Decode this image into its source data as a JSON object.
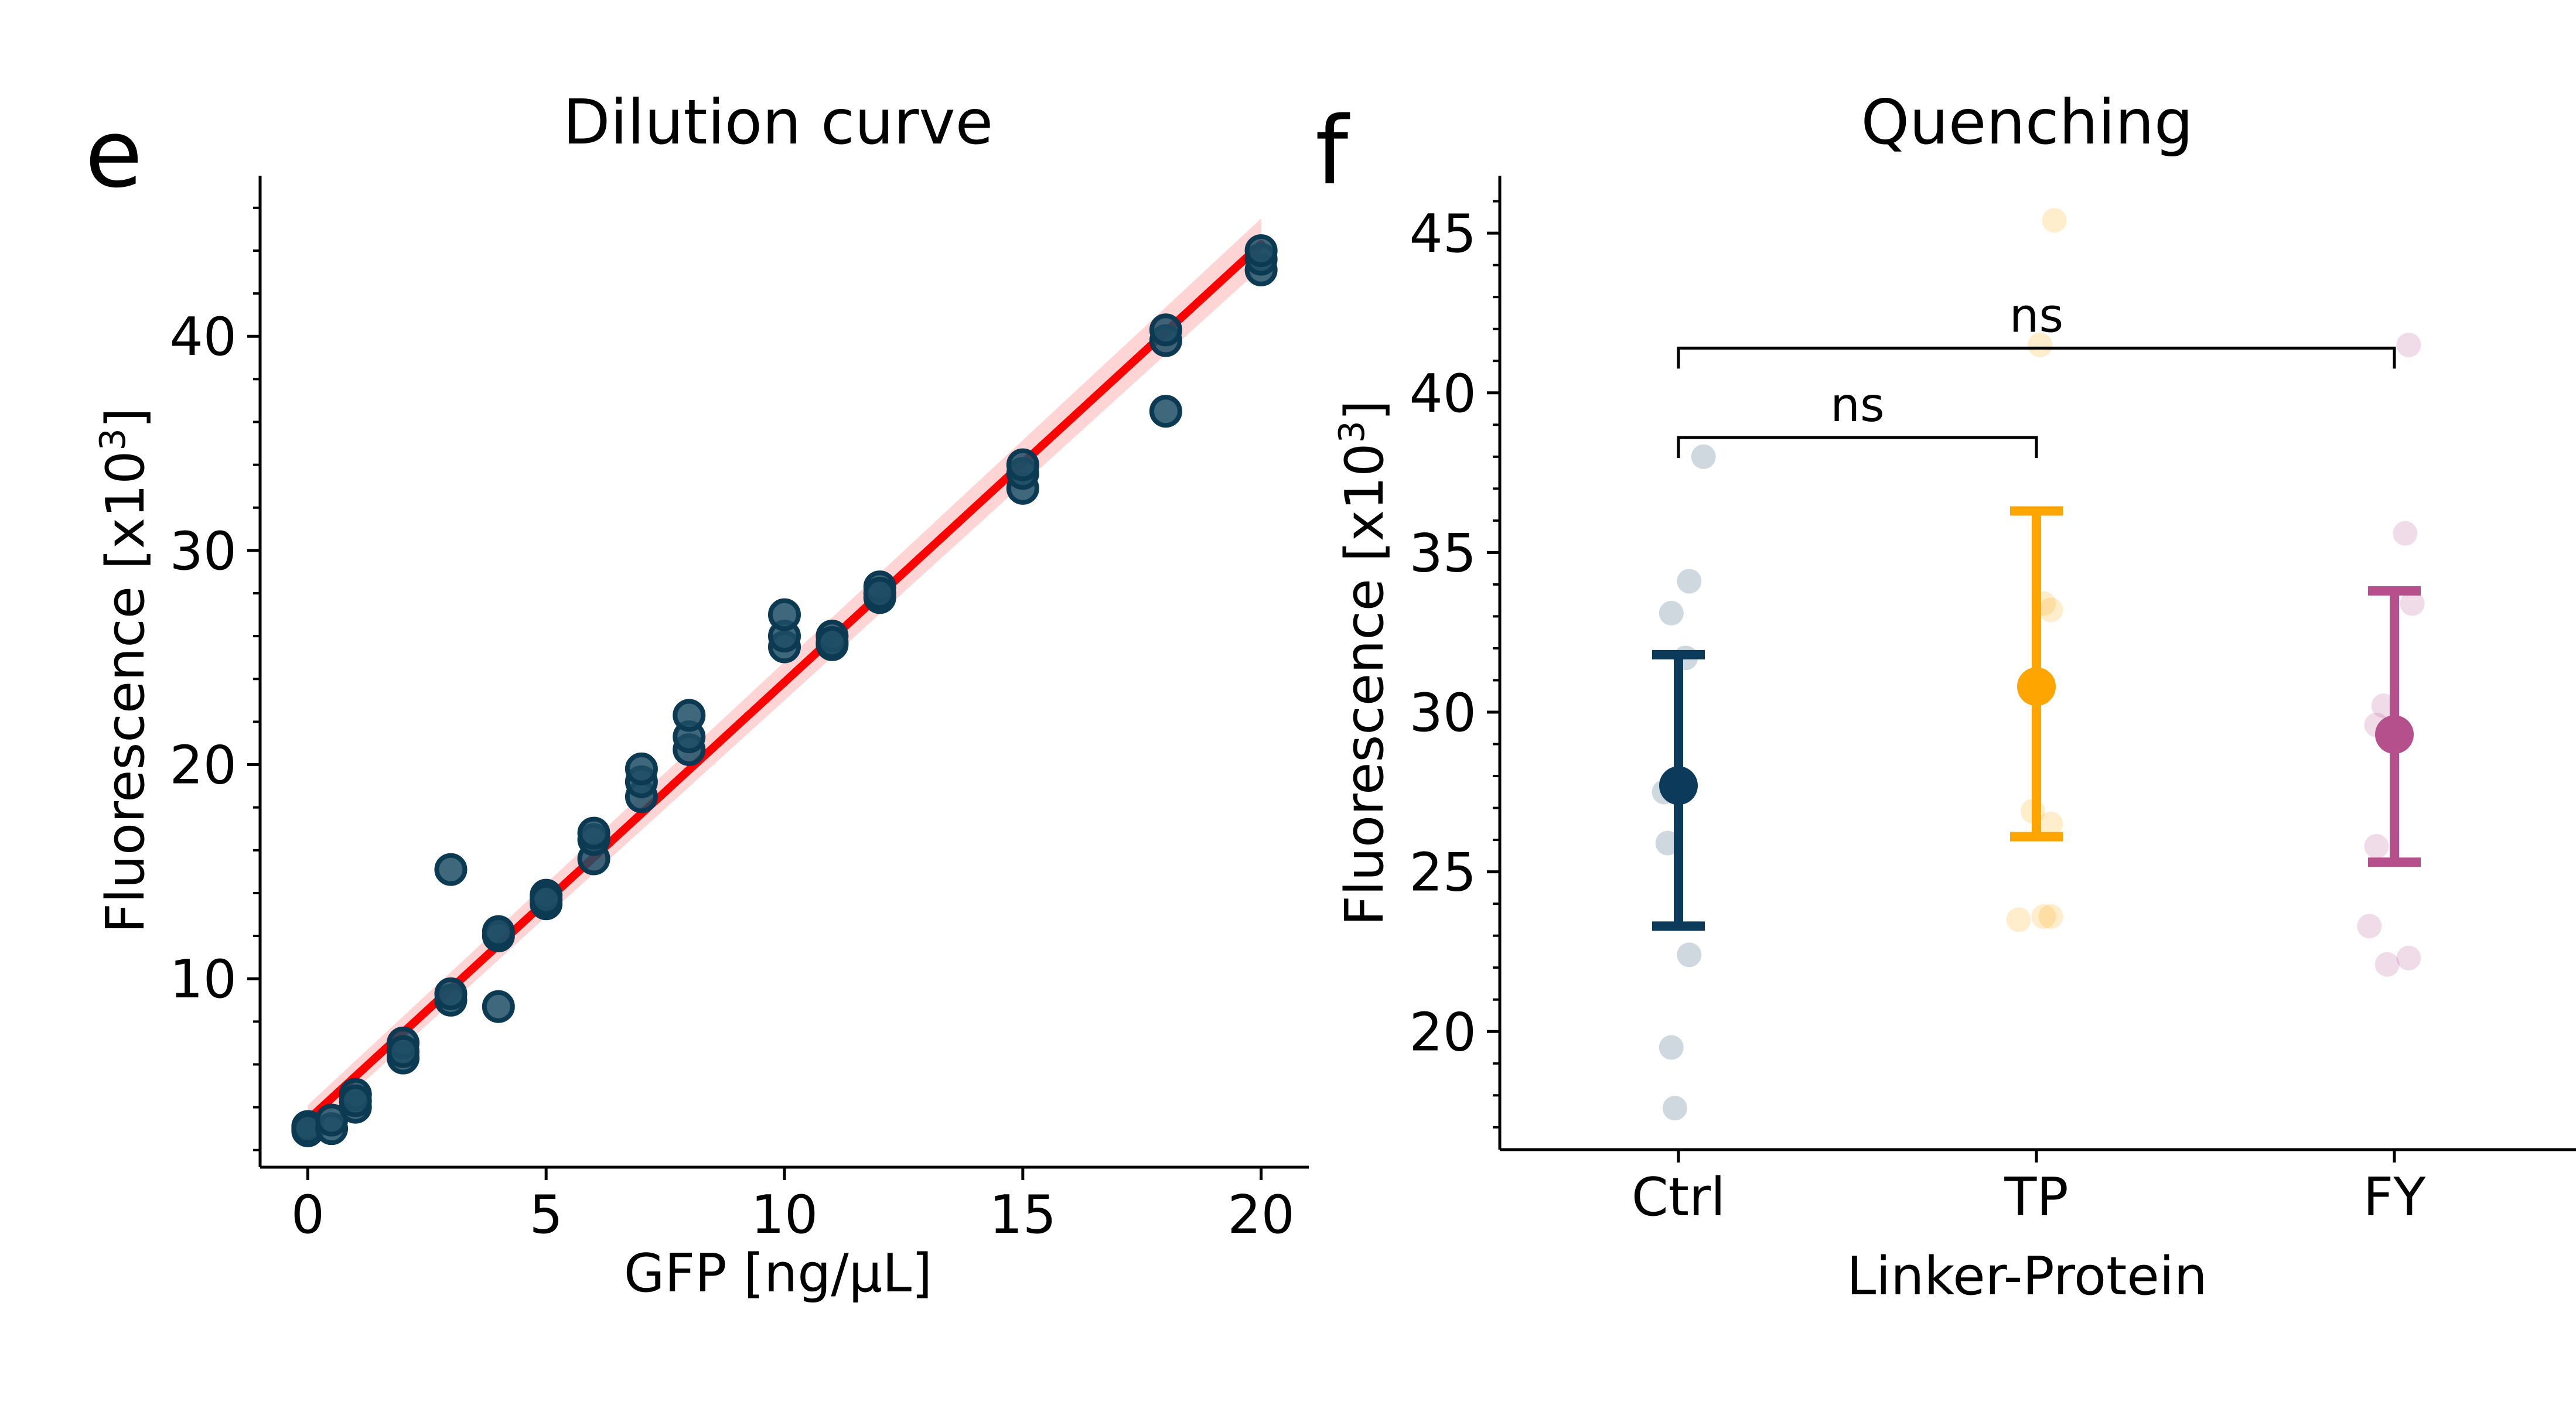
{
  "figure": {
    "panel_e_letter": "e",
    "panel_f_letter": "f"
  },
  "chart_data": [
    {
      "type": "scatter",
      "title": "Dilution curve",
      "xlabel": "GFP [ng/µL]",
      "ylabel_main": "Fluorescence [x10",
      "ylabel_sup": "3",
      "ylabel_end": "]",
      "xlim": [
        -1,
        21
      ],
      "ylim": [
        1.2,
        47.5
      ],
      "xticks": [
        0,
        5,
        10,
        15,
        20
      ],
      "yticks": [
        10,
        20,
        30,
        40
      ],
      "ytick_minor_step": 2,
      "grid": false,
      "point_color": "#1f4e66",
      "point_edge_color": "#0b3a52",
      "fit_color": "#ff0000",
      "ci_color": "#ffcccc",
      "fit_line": {
        "x": [
          0,
          20
        ],
        "y": [
          3.4,
          44.3
        ]
      },
      "ci_band": {
        "x": [
          0,
          20
        ],
        "lower": [
          2.8,
          43.2
        ],
        "upper": [
          4.1,
          45.5
        ]
      },
      "points": [
        {
          "x": 0,
          "y": 2.9
        },
        {
          "x": 0,
          "y": 3.1
        },
        {
          "x": 0,
          "y": 3.0
        },
        {
          "x": 0.5,
          "y": 3.0
        },
        {
          "x": 0.5,
          "y": 3.4
        },
        {
          "x": 1,
          "y": 4.0
        },
        {
          "x": 1,
          "y": 4.6
        },
        {
          "x": 1,
          "y": 4.3
        },
        {
          "x": 2,
          "y": 6.3
        },
        {
          "x": 2,
          "y": 7.0
        },
        {
          "x": 2,
          "y": 6.6
        },
        {
          "x": 3,
          "y": 9.0
        },
        {
          "x": 3,
          "y": 9.3
        },
        {
          "x": 3,
          "y": 15.1
        },
        {
          "x": 4,
          "y": 8.7
        },
        {
          "x": 4,
          "y": 12.0
        },
        {
          "x": 4,
          "y": 12.2
        },
        {
          "x": 5,
          "y": 13.5
        },
        {
          "x": 5,
          "y": 13.9
        },
        {
          "x": 5,
          "y": 13.7
        },
        {
          "x": 6,
          "y": 15.6
        },
        {
          "x": 6,
          "y": 16.5
        },
        {
          "x": 6,
          "y": 16.8
        },
        {
          "x": 7,
          "y": 18.5
        },
        {
          "x": 7,
          "y": 19.2
        },
        {
          "x": 7,
          "y": 19.8
        },
        {
          "x": 8,
          "y": 20.7
        },
        {
          "x": 8,
          "y": 21.3
        },
        {
          "x": 8,
          "y": 22.3
        },
        {
          "x": 10,
          "y": 25.5
        },
        {
          "x": 10,
          "y": 26.0
        },
        {
          "x": 10,
          "y": 27.0
        },
        {
          "x": 11,
          "y": 25.6
        },
        {
          "x": 11,
          "y": 26.0
        },
        {
          "x": 11,
          "y": 25.7
        },
        {
          "x": 12,
          "y": 27.8
        },
        {
          "x": 12,
          "y": 28.3
        },
        {
          "x": 12,
          "y": 28.0
        },
        {
          "x": 15,
          "y": 32.9
        },
        {
          "x": 15,
          "y": 33.6
        },
        {
          "x": 15,
          "y": 34.0
        },
        {
          "x": 18,
          "y": 36.5
        },
        {
          "x": 18,
          "y": 39.8
        },
        {
          "x": 18,
          "y": 40.3
        },
        {
          "x": 20,
          "y": 43.1
        },
        {
          "x": 20,
          "y": 43.6
        },
        {
          "x": 20,
          "y": 44.0
        }
      ]
    },
    {
      "type": "scatter",
      "subtype": "mean-with-error-bars",
      "title": "Quenching",
      "xlabel": "Linker-Protein",
      "ylabel_main": "Fluorescence [x10",
      "ylabel_sup": "3",
      "ylabel_end": "]",
      "categories": [
        "Ctrl",
        "TP",
        "FY"
      ],
      "ylim": [
        16.3,
        46.8
      ],
      "yticks": [
        20,
        25,
        30,
        35,
        40,
        45
      ],
      "ytick_minor_step": 1,
      "grid": false,
      "groups": [
        {
          "category": "Ctrl",
          "color": "#0b3a5a",
          "mean": 27.7,
          "err_low": 23.3,
          "err_high": 31.8,
          "points": [
            {
              "dx": 0.07,
              "y": 38.0
            },
            {
              "dx": 0.03,
              "y": 34.1
            },
            {
              "dx": -0.02,
              "y": 33.1
            },
            {
              "dx": 0.02,
              "y": 31.7
            },
            {
              "dx": -0.04,
              "y": 27.5
            },
            {
              "dx": -0.03,
              "y": 25.9
            },
            {
              "dx": 0.03,
              "y": 22.4
            },
            {
              "dx": -0.02,
              "y": 19.5
            },
            {
              "dx": -0.01,
              "y": 17.6
            }
          ]
        },
        {
          "category": "TP",
          "color": "#ffa500",
          "mean": 30.8,
          "err_low": 26.1,
          "err_high": 36.3,
          "points": [
            {
              "dx": 0.05,
              "y": 45.4
            },
            {
              "dx": 0.01,
              "y": 41.5
            },
            {
              "dx": 0.04,
              "y": 33.2
            },
            {
              "dx": 0.02,
              "y": 33.4
            },
            {
              "dx": 0.04,
              "y": 26.5
            },
            {
              "dx": -0.01,
              "y": 26.9
            },
            {
              "dx": 0.04,
              "y": 23.6
            },
            {
              "dx": 0.02,
              "y": 23.6
            },
            {
              "dx": -0.05,
              "y": 23.5
            }
          ]
        },
        {
          "category": "FY",
          "color": "#b5508c",
          "mean": 29.3,
          "err_low": 25.3,
          "err_high": 33.8,
          "points": [
            {
              "dx": 0.04,
              "y": 41.5
            },
            {
              "dx": 0.03,
              "y": 35.6
            },
            {
              "dx": 0.05,
              "y": 33.4
            },
            {
              "dx": -0.03,
              "y": 30.2
            },
            {
              "dx": -0.05,
              "y": 29.6
            },
            {
              "dx": -0.05,
              "y": 25.8
            },
            {
              "dx": -0.07,
              "y": 23.3
            },
            {
              "dx": -0.02,
              "y": 22.1
            },
            {
              "dx": 0.04,
              "y": 22.3
            }
          ]
        }
      ],
      "annotations": [
        {
          "from": "Ctrl",
          "to": "TP",
          "y": 38.6,
          "label": "ns"
        },
        {
          "from": "Ctrl",
          "to": "FY",
          "y": 41.4,
          "label": "ns"
        }
      ]
    }
  ]
}
